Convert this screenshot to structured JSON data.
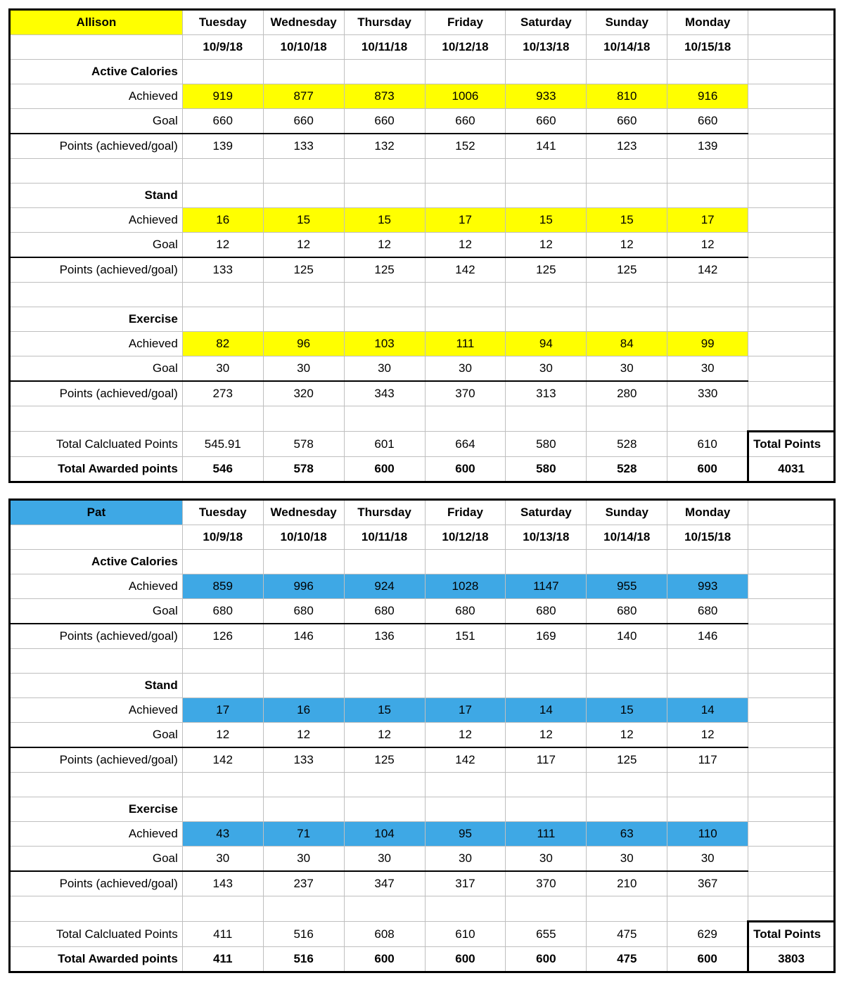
{
  "days": [
    "Tuesday",
    "Wednesday",
    "Thursday",
    "Friday",
    "Saturday",
    "Sunday",
    "Monday"
  ],
  "dates": [
    "10/9/18",
    "10/10/18",
    "10/11/18",
    "10/12/18",
    "10/13/18",
    "10/14/18",
    "10/15/18"
  ],
  "labels": {
    "active_calories": "Active Calories",
    "stand": "Stand",
    "exercise": "Exercise",
    "achieved": "Achieved",
    "goal": "Goal",
    "points": "Points (achieved/goal)",
    "total_calc": "Total Calcluated Points",
    "total_awarded": "Total Awarded points",
    "total_points": "Total Points"
  },
  "colors": {
    "yellow": "#ffff00",
    "blue": "#3ea8e5",
    "grid": "#bfbfbf",
    "border": "#000000",
    "text": "#000000",
    "background": "#ffffff"
  },
  "typography": {
    "fontFamily": "Century Gothic, sans-serif",
    "fontSizePt": 13,
    "boldWeight": 700
  },
  "blocks": [
    {
      "name": "Allison",
      "highlightClass": "hl-yellow",
      "active_calories": {
        "achieved": [
          919,
          877,
          873,
          1006,
          933,
          810,
          916
        ],
        "goal": [
          660,
          660,
          660,
          660,
          660,
          660,
          660
        ],
        "points": [
          139,
          133,
          132,
          152,
          141,
          123,
          139
        ]
      },
      "stand": {
        "achieved": [
          16,
          15,
          15,
          17,
          15,
          15,
          17
        ],
        "goal": [
          12,
          12,
          12,
          12,
          12,
          12,
          12
        ],
        "points": [
          133,
          125,
          125,
          142,
          125,
          125,
          142
        ]
      },
      "exercise": {
        "achieved": [
          82,
          96,
          103,
          111,
          94,
          84,
          99
        ],
        "goal": [
          30,
          30,
          30,
          30,
          30,
          30,
          30
        ],
        "points": [
          273,
          320,
          343,
          370,
          313,
          280,
          330
        ]
      },
      "total_calc": [
        "545.91",
        "578",
        "601",
        "664",
        "580",
        "528",
        "610"
      ],
      "total_awarded": [
        546,
        578,
        600,
        600,
        580,
        528,
        600
      ],
      "total_points": 4031
    },
    {
      "name": "Pat",
      "highlightClass": "hl-blue",
      "active_calories": {
        "achieved": [
          859,
          996,
          924,
          1028,
          1147,
          955,
          993
        ],
        "goal": [
          680,
          680,
          680,
          680,
          680,
          680,
          680
        ],
        "points": [
          126,
          146,
          136,
          151,
          169,
          140,
          146
        ]
      },
      "stand": {
        "achieved": [
          17,
          16,
          15,
          17,
          14,
          15,
          14
        ],
        "goal": [
          12,
          12,
          12,
          12,
          12,
          12,
          12
        ],
        "points": [
          142,
          133,
          125,
          142,
          117,
          125,
          117
        ]
      },
      "exercise": {
        "achieved": [
          43,
          71,
          104,
          95,
          111,
          63,
          110
        ],
        "goal": [
          30,
          30,
          30,
          30,
          30,
          30,
          30
        ],
        "points": [
          143,
          237,
          347,
          317,
          370,
          210,
          367
        ]
      },
      "total_calc": [
        "411",
        "516",
        "608",
        "610",
        "655",
        "475",
        "629"
      ],
      "total_awarded": [
        411,
        516,
        600,
        600,
        600,
        475,
        600
      ],
      "total_points": 3803
    }
  ]
}
